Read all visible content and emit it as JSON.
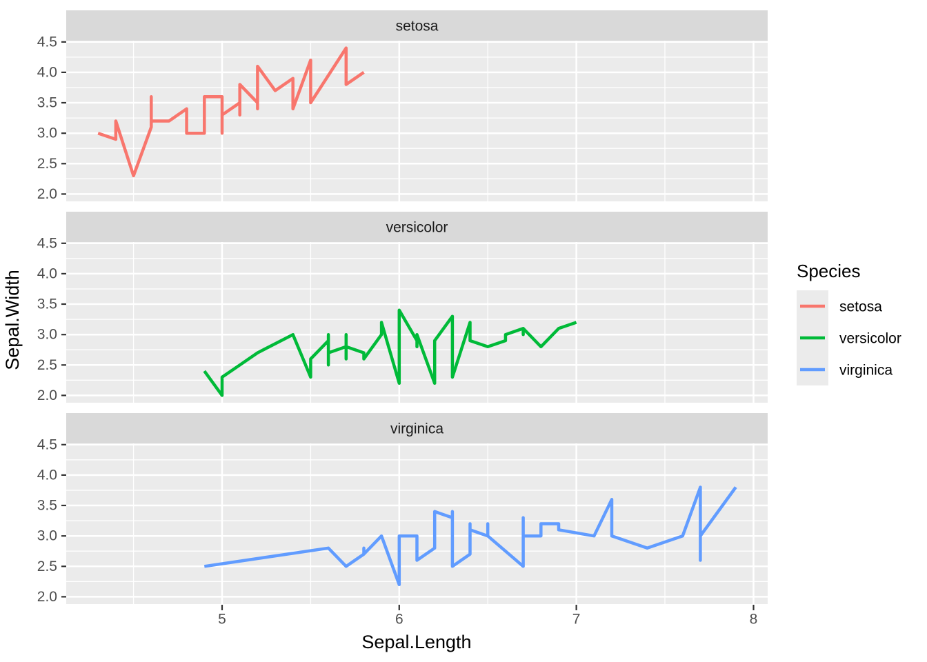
{
  "chart_data": {
    "type": "line",
    "title": "",
    "xlabel": "Sepal.Length",
    "ylabel": "Sepal.Width",
    "x_domain": [
      4.12,
      8.08
    ],
    "y_domain": [
      1.88,
      4.52
    ],
    "x_ticks": [
      5,
      6,
      7,
      8
    ],
    "x_tick_labels": [
      "5",
      "6",
      "7",
      "8"
    ],
    "x_minor": [
      4.5,
      5.5,
      6.5,
      7.5
    ],
    "y_ticks": [
      2.0,
      2.5,
      3.0,
      3.5,
      4.0,
      4.5
    ],
    "y_tick_labels": [
      "2.0",
      "2.5",
      "3.0",
      "3.5",
      "4.0",
      "4.5"
    ],
    "y_minor": [
      2.25,
      2.75,
      3.25,
      3.75,
      4.25
    ],
    "grid": true,
    "legend_position": "right",
    "legend": {
      "title": "Species",
      "entries": [
        {
          "label": "setosa",
          "color": "#F8766D"
        },
        {
          "label": "versicolor",
          "color": "#00BA38"
        },
        {
          "label": "virginica",
          "color": "#619CFF"
        }
      ]
    },
    "colors": {
      "panel_bg": "#EBEBEB",
      "strip_bg": "#D9D9D9",
      "grid": "#FFFFFF",
      "tick": "#333333",
      "legend_key_bg": "#EBEBEB"
    },
    "facets": [
      {
        "label": "setosa",
        "series": "setosa",
        "color": "#F8766D",
        "points": [
          [
            5.1,
            3.5
          ],
          [
            4.9,
            3.0
          ],
          [
            4.7,
            3.2
          ],
          [
            4.6,
            3.1
          ],
          [
            5.0,
            3.6
          ],
          [
            5.4,
            3.9
          ],
          [
            4.6,
            3.4
          ],
          [
            5.0,
            3.4
          ],
          [
            4.4,
            2.9
          ],
          [
            4.9,
            3.1
          ],
          [
            5.4,
            3.7
          ],
          [
            4.8,
            3.4
          ],
          [
            4.8,
            3.0
          ],
          [
            4.3,
            3.0
          ],
          [
            5.8,
            4.0
          ],
          [
            5.7,
            4.4
          ],
          [
            5.4,
            3.9
          ],
          [
            5.1,
            3.5
          ],
          [
            5.7,
            3.8
          ],
          [
            5.1,
            3.8
          ],
          [
            5.4,
            3.4
          ],
          [
            5.1,
            3.7
          ],
          [
            4.6,
            3.6
          ],
          [
            5.1,
            3.3
          ],
          [
            4.8,
            3.4
          ],
          [
            5.0,
            3.0
          ],
          [
            5.0,
            3.4
          ],
          [
            5.2,
            3.5
          ],
          [
            5.2,
            3.4
          ],
          [
            4.7,
            3.2
          ],
          [
            4.8,
            3.1
          ],
          [
            5.4,
            3.4
          ],
          [
            5.2,
            4.1
          ],
          [
            5.5,
            4.2
          ],
          [
            4.9,
            3.1
          ],
          [
            5.0,
            3.2
          ],
          [
            5.5,
            3.5
          ],
          [
            4.9,
            3.6
          ],
          [
            4.4,
            3.0
          ],
          [
            5.1,
            3.4
          ],
          [
            5.0,
            3.5
          ],
          [
            4.5,
            2.3
          ],
          [
            4.4,
            3.2
          ],
          [
            5.0,
            3.5
          ],
          [
            5.1,
            3.8
          ],
          [
            4.8,
            3.0
          ],
          [
            5.1,
            3.8
          ],
          [
            4.6,
            3.2
          ],
          [
            5.3,
            3.7
          ],
          [
            5.0,
            3.3
          ]
        ]
      },
      {
        "label": "versicolor",
        "series": "versicolor",
        "color": "#00BA38",
        "points": [
          [
            7.0,
            3.2
          ],
          [
            6.4,
            3.2
          ],
          [
            6.9,
            3.1
          ],
          [
            5.5,
            2.3
          ],
          [
            6.5,
            2.8
          ],
          [
            5.7,
            2.8
          ],
          [
            6.3,
            3.3
          ],
          [
            4.9,
            2.4
          ],
          [
            6.6,
            2.9
          ],
          [
            5.2,
            2.7
          ],
          [
            5.0,
            2.0
          ],
          [
            5.9,
            3.0
          ],
          [
            6.0,
            2.2
          ],
          [
            6.1,
            2.9
          ],
          [
            5.6,
            2.9
          ],
          [
            6.7,
            3.1
          ],
          [
            5.6,
            3.0
          ],
          [
            5.8,
            2.7
          ],
          [
            6.2,
            2.2
          ],
          [
            5.6,
            2.5
          ],
          [
            5.9,
            3.2
          ],
          [
            6.1,
            2.8
          ],
          [
            6.3,
            2.5
          ],
          [
            6.1,
            2.8
          ],
          [
            6.4,
            2.9
          ],
          [
            6.6,
            3.0
          ],
          [
            6.8,
            2.8
          ],
          [
            6.7,
            3.0
          ],
          [
            6.0,
            2.9
          ],
          [
            5.7,
            2.6
          ],
          [
            5.5,
            2.4
          ],
          [
            5.5,
            2.4
          ],
          [
            5.8,
            2.7
          ],
          [
            6.0,
            2.7
          ],
          [
            5.4,
            3.0
          ],
          [
            6.0,
            3.4
          ],
          [
            6.7,
            3.1
          ],
          [
            6.3,
            2.3
          ],
          [
            5.6,
            3.0
          ],
          [
            5.5,
            2.5
          ],
          [
            5.5,
            2.6
          ],
          [
            6.1,
            3.0
          ],
          [
            5.8,
            2.6
          ],
          [
            5.0,
            2.3
          ],
          [
            5.6,
            2.7
          ],
          [
            5.7,
            3.0
          ],
          [
            5.7,
            2.9
          ],
          [
            6.2,
            2.9
          ],
          [
            5.1,
            2.5
          ],
          [
            5.7,
            2.8
          ]
        ]
      },
      {
        "label": "virginica",
        "series": "virginica",
        "color": "#619CFF",
        "points": [
          [
            6.3,
            3.3
          ],
          [
            5.8,
            2.7
          ],
          [
            7.1,
            3.0
          ],
          [
            6.3,
            2.9
          ],
          [
            6.5,
            3.0
          ],
          [
            7.6,
            3.0
          ],
          [
            4.9,
            2.5
          ],
          [
            7.3,
            2.9
          ],
          [
            6.7,
            2.5
          ],
          [
            7.2,
            3.6
          ],
          [
            6.5,
            3.2
          ],
          [
            6.4,
            2.7
          ],
          [
            6.8,
            3.0
          ],
          [
            5.7,
            2.5
          ],
          [
            5.8,
            2.8
          ],
          [
            6.4,
            3.2
          ],
          [
            6.5,
            3.0
          ],
          [
            7.7,
            3.8
          ],
          [
            7.7,
            2.6
          ],
          [
            6.0,
            2.2
          ],
          [
            6.9,
            3.2
          ],
          [
            5.6,
            2.8
          ],
          [
            7.7,
            2.8
          ],
          [
            6.3,
            2.7
          ],
          [
            6.7,
            3.3
          ],
          [
            7.2,
            3.2
          ],
          [
            6.2,
            2.8
          ],
          [
            6.1,
            3.0
          ],
          [
            6.4,
            2.8
          ],
          [
            7.2,
            3.0
          ],
          [
            7.4,
            2.8
          ],
          [
            7.9,
            3.8
          ],
          [
            6.4,
            2.8
          ],
          [
            6.3,
            2.8
          ],
          [
            6.1,
            2.6
          ],
          [
            7.7,
            3.0
          ],
          [
            6.3,
            3.4
          ],
          [
            6.4,
            3.1
          ],
          [
            6.0,
            3.0
          ],
          [
            6.9,
            3.1
          ],
          [
            6.7,
            3.1
          ],
          [
            6.9,
            3.1
          ],
          [
            5.8,
            2.7
          ],
          [
            6.8,
            3.2
          ],
          [
            6.7,
            3.3
          ],
          [
            6.7,
            3.0
          ],
          [
            6.3,
            2.5
          ],
          [
            6.5,
            3.0
          ],
          [
            6.2,
            3.4
          ],
          [
            5.9,
            3.0
          ]
        ]
      }
    ]
  }
}
